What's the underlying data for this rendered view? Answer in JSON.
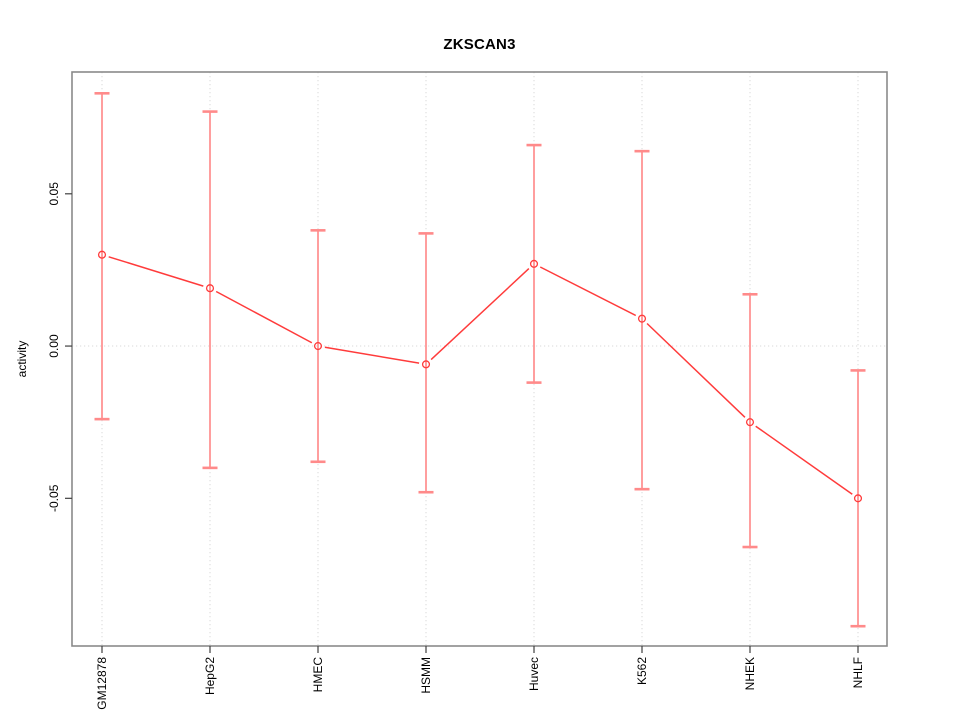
{
  "chart_data": {
    "type": "line",
    "title": "ZKSCAN3",
    "xlabel": "",
    "ylabel": "activity",
    "categories": [
      "GM12878",
      "HepG2",
      "HMEC",
      "HSMM",
      "Huvec",
      "K562",
      "NHEK",
      "NHLF"
    ],
    "series": [
      {
        "name": "activity",
        "values": [
          0.03,
          0.019,
          0.0,
          -0.006,
          0.027,
          0.009,
          -0.025,
          -0.05
        ],
        "upper": [
          0.083,
          0.077,
          0.038,
          0.037,
          0.066,
          0.064,
          0.017,
          -0.008
        ],
        "lower": [
          -0.024,
          -0.04,
          -0.038,
          -0.048,
          -0.012,
          -0.047,
          -0.066,
          -0.092
        ]
      }
    ],
    "yticks": [
      0.05,
      0.0,
      -0.05
    ],
    "ytick_labels": [
      "0.05",
      "0.00",
      "-0.05"
    ],
    "ylim": [
      -0.0985,
      0.09
    ],
    "grid": {
      "vertical_dotted_at_categories": true,
      "horizontal_dotted_at_zero": true
    },
    "legend": "none",
    "marker": "open-circle",
    "colors": {
      "point_line": "#ff3b3b",
      "error_bar": "#ff9494",
      "error_bar_cap": "#ff8a8a",
      "grid": "#d9d9d9",
      "box": "#8a8a8a",
      "tick": "#404040",
      "text": "#000000",
      "background": "#ffffff"
    }
  }
}
